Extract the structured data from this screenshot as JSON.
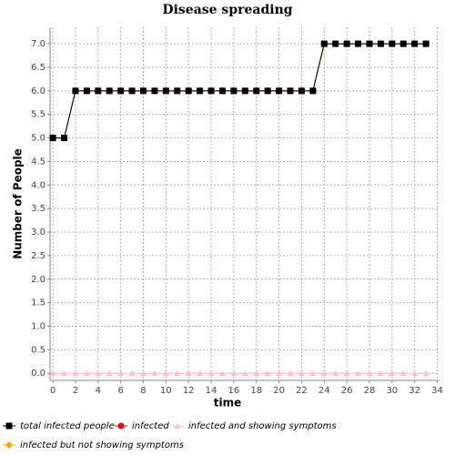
{
  "chart_data": {
    "type": "line",
    "title": "Disease spreading",
    "xlabel": "time",
    "ylabel": "Number of People",
    "x": [
      0,
      1,
      2,
      3,
      4,
      5,
      6,
      7,
      8,
      9,
      10,
      11,
      12,
      13,
      14,
      15,
      16,
      17,
      18,
      19,
      20,
      21,
      22,
      23,
      24,
      25,
      26,
      27,
      28,
      29,
      30,
      31,
      32,
      33
    ],
    "series": [
      {
        "name": "total infected people",
        "color": "#000000",
        "marker": "square",
        "values": [
          5,
          5,
          6,
          6,
          6,
          6,
          6,
          6,
          6,
          6,
          6,
          6,
          6,
          6,
          6,
          6,
          6,
          6,
          6,
          6,
          6,
          6,
          6,
          6,
          7,
          7,
          7,
          7,
          7,
          7,
          7,
          7,
          7,
          7
        ]
      },
      {
        "name": "infected",
        "color": "#ff0000",
        "marker": "circle",
        "values": [
          5,
          5,
          6,
          6,
          6,
          6,
          6,
          6,
          6,
          6,
          6,
          6,
          6,
          6,
          6,
          6,
          6,
          6,
          6,
          6,
          6,
          6,
          6,
          6,
          7,
          7,
          7,
          7,
          7,
          7,
          7,
          7,
          7,
          7
        ]
      },
      {
        "name": "infected and showing symptoms",
        "color": "#ffc0cb",
        "marker": "triangle",
        "values": [
          0,
          0,
          0,
          0,
          0,
          0,
          0,
          0,
          0,
          0,
          0,
          0,
          0,
          0,
          0,
          0,
          0,
          0,
          0,
          0,
          0,
          0,
          0,
          0,
          0,
          0,
          0,
          0,
          0,
          0,
          0,
          0,
          0,
          0
        ]
      },
      {
        "name": "infected but not showing symptoms",
        "color": "#ffa500",
        "marker": "diamond",
        "values": [
          5,
          5,
          6,
          6,
          6,
          6,
          6,
          6,
          6,
          6,
          6,
          6,
          6,
          6,
          6,
          6,
          6,
          6,
          6,
          6,
          6,
          6,
          6,
          6,
          7,
          7,
          7,
          7,
          7,
          7,
          7,
          7,
          7,
          7
        ]
      }
    ],
    "xlim": [
      -0.25,
      34.2
    ],
    "xticks": [
      0,
      2,
      4,
      6,
      8,
      10,
      12,
      14,
      16,
      18,
      20,
      22,
      24,
      26,
      28,
      30,
      32,
      34
    ],
    "ylim": [
      -0.15,
      7.35
    ],
    "yticks": [
      {
        "value": 0,
        "label": "0.0"
      },
      {
        "value": 0.5,
        "label": "0.5"
      },
      {
        "value": 1,
        "label": "1.0"
      },
      {
        "value": 1.5,
        "label": "1.5"
      },
      {
        "value": 2,
        "label": "2.0"
      },
      {
        "value": 2.5,
        "label": "2.5"
      },
      {
        "value": 3,
        "label": "3.0"
      },
      {
        "value": 3.5,
        "label": "3.5"
      },
      {
        "value": 4,
        "label": "4.0"
      },
      {
        "value": 4.5,
        "label": "4.5"
      },
      {
        "value": 5,
        "label": "5.0"
      },
      {
        "value": 5.5,
        "label": "5.5"
      },
      {
        "value": 6,
        "label": "6.0"
      },
      {
        "value": 6.5,
        "label": "6.5"
      },
      {
        "value": 7,
        "label": "7.0"
      }
    ],
    "grid": true,
    "legend": "bottom"
  }
}
